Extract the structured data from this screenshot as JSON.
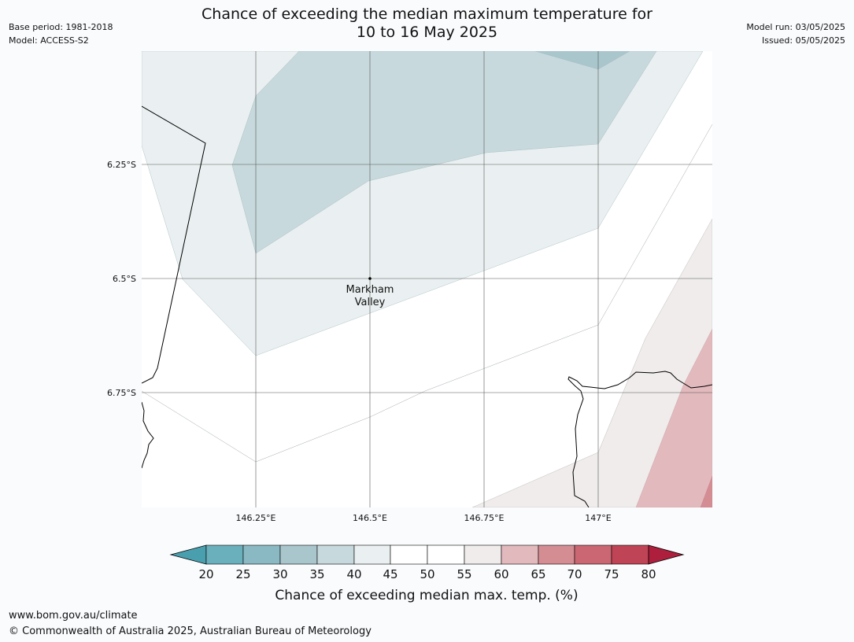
{
  "header": {
    "base_period": "Base period: 1981-2018",
    "model": "Model: ACCESS-S2",
    "model_run": "Model run: 03/05/2025",
    "issued": "Issued: 05/05/2025",
    "title_line1": "Chance of exceeding the median maximum temperature for",
    "title_line2": "10 to 16 May 2025"
  },
  "map": {
    "lon_labels": [
      "146.25°E",
      "146.5°E",
      "146.75°E",
      "147°E"
    ],
    "lat_labels": [
      "6.25°S",
      "6.5°S",
      "6.75°S"
    ],
    "place": {
      "name_line1": "Markham",
      "name_line2": "Valley"
    }
  },
  "colorbar": {
    "ticks": [
      "20",
      "25",
      "30",
      "35",
      "40",
      "45",
      "50",
      "55",
      "60",
      "65",
      "70",
      "75",
      "80"
    ],
    "label": "Chance of exceeding median max. temp. (%)",
    "colors": {
      "lt20": "#4a9fae",
      "20_25": "#6ab0bc",
      "25_30": "#8ab9c4",
      "30_35": "#aac6cd",
      "35_40": "#c7d9dd",
      "40_45": "#eaf0f1",
      "45_50": "#ffffff",
      "50_55": "#ffffff",
      "55_60": "#efeceb",
      "60_65": "#e2b9bd",
      "65_70": "#d58d94",
      "70_75": "#cb6772",
      "75_80": "#bf4455",
      "gt80": "#ad1f3c"
    }
  },
  "footer": {
    "url": "www.bom.gov.au/climate",
    "copyright": "© Commonwealth of Australia 2025, Australian Bureau of Meteorology"
  }
}
